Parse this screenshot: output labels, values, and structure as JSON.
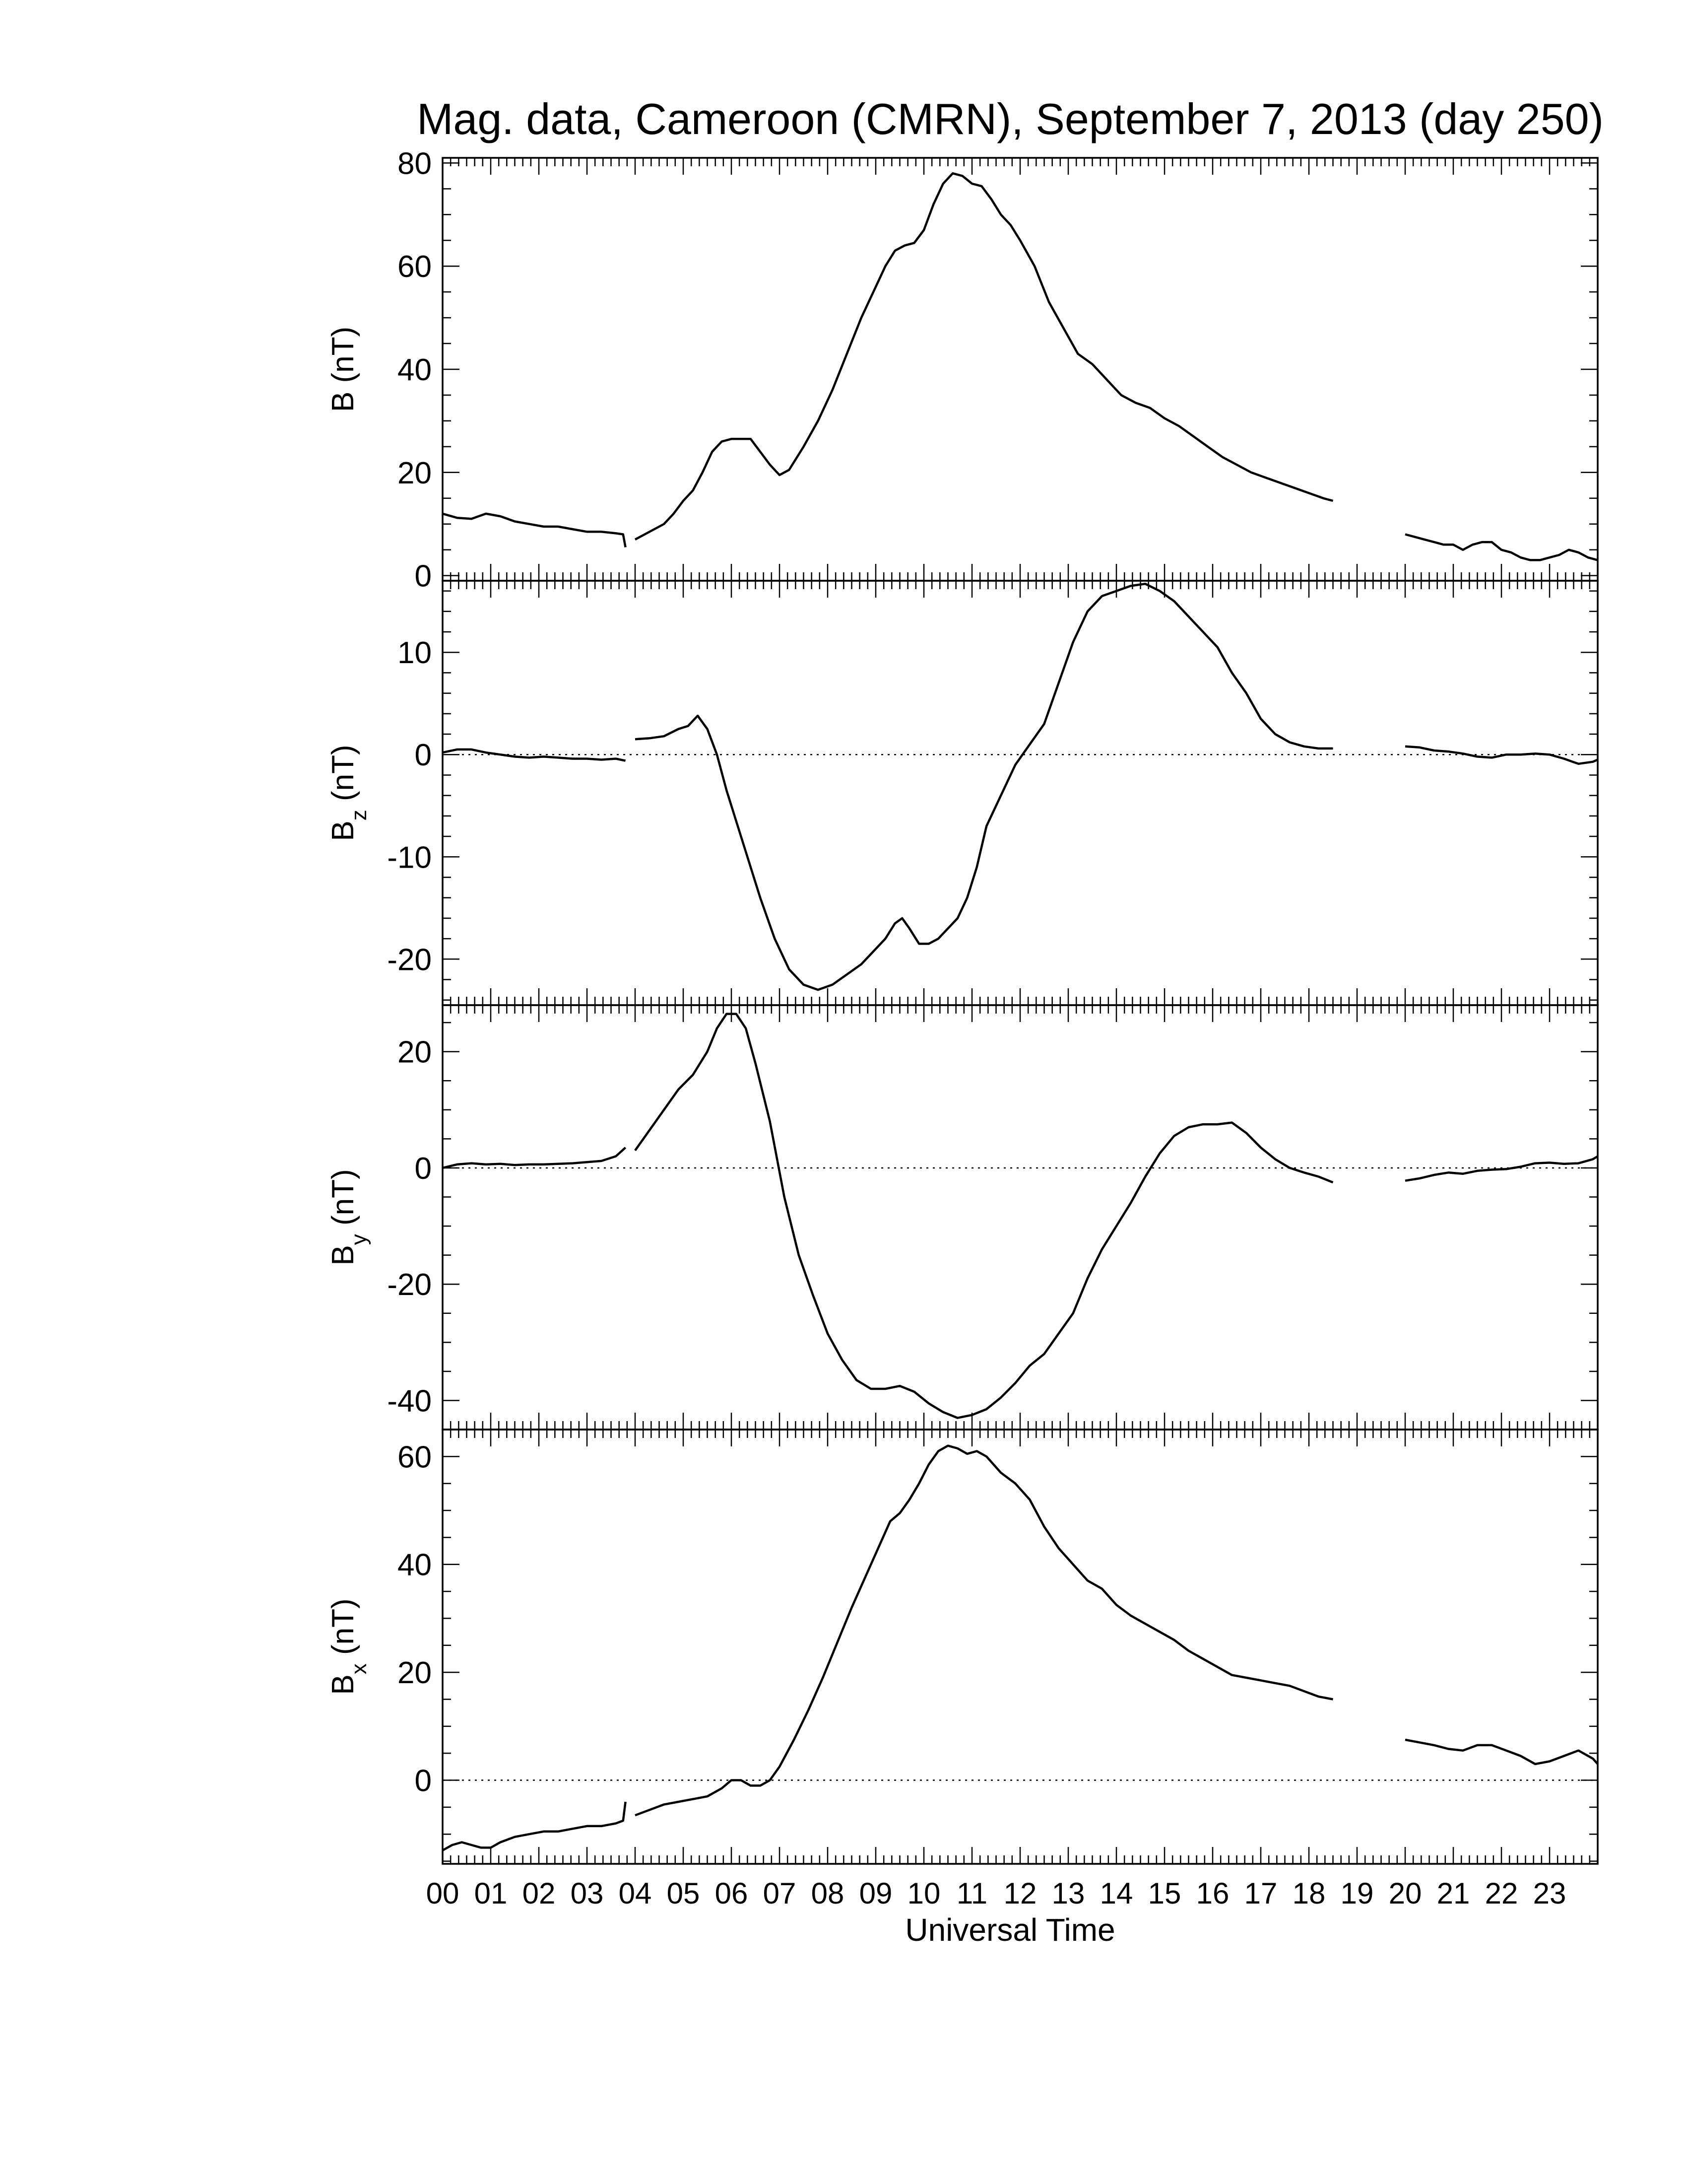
{
  "figure": {
    "title": "Mag. data, Cameroon (CMRN), September 7, 2013 (day 250)",
    "xlabel": "Universal Time"
  },
  "chart_data": [
    {
      "type": "line",
      "panel": "B",
      "ylabel": "B (nT)",
      "ylabel_sub": "",
      "ylim": [
        -1,
        81
      ],
      "yticks": [
        0,
        20,
        40,
        60,
        80
      ],
      "ytick_labels": [
        "0",
        "20",
        "40",
        "60",
        "80"
      ],
      "zero_line": false,
      "xlim": [
        0,
        24
      ],
      "x_tick_labels": [
        "00",
        "01",
        "02",
        "03",
        "04",
        "05",
        "06",
        "07",
        "08",
        "09",
        "10",
        "11",
        "12",
        "13",
        "14",
        "15",
        "16",
        "17",
        "18",
        "19",
        "20",
        "21",
        "22",
        "23"
      ],
      "segments": [
        {
          "x": [
            0,
            0.3,
            0.6,
            0.9,
            1.2,
            1.5,
            1.8,
            2.1,
            2.4,
            2.7,
            3.0,
            3.3,
            3.6,
            3.75,
            3.8
          ],
          "y": [
            12,
            11.2,
            11,
            12,
            11.5,
            10.5,
            10,
            9.5,
            9.5,
            9,
            8.5,
            8.5,
            8.2,
            8,
            5.5
          ]
        },
        {
          "x": [
            4.0,
            4.3,
            4.6,
            4.8,
            5.0,
            5.2,
            5.4,
            5.6,
            5.8,
            6.0,
            6.2,
            6.4,
            6.6,
            6.8,
            7.0,
            7.2,
            7.5,
            7.8,
            8.1,
            8.4,
            8.7,
            9.0,
            9.2,
            9.4,
            9.6,
            9.8,
            10.0,
            10.2,
            10.4,
            10.6,
            10.8,
            11.0,
            11.2,
            11.4,
            11.6,
            11.8,
            12.0,
            12.3,
            12.6,
            12.9,
            13.2,
            13.5,
            13.8,
            14.1,
            14.4,
            14.7,
            15.0,
            15.3,
            15.6,
            15.9,
            16.2,
            16.5,
            16.8,
            17.1,
            17.4,
            17.7,
            18.0,
            18.3,
            18.5
          ],
          "y": [
            7,
            8.5,
            10,
            12,
            14.5,
            16.5,
            20,
            24,
            26,
            26.5,
            26.5,
            26.5,
            24,
            21.5,
            19.5,
            20.5,
            25,
            30,
            36,
            43,
            50,
            56,
            60,
            63,
            64,
            64.5,
            67,
            72,
            76,
            78,
            77.5,
            76,
            75.5,
            73,
            70,
            68,
            65,
            60,
            53,
            48,
            43,
            41,
            38,
            35,
            33.5,
            32.5,
            30.5,
            29,
            27,
            25,
            23,
            21.5,
            20,
            19,
            18,
            17,
            16,
            15,
            14.5
          ]
        },
        {
          "x": [
            20.0,
            20.2,
            20.4,
            20.6,
            20.8,
            21.0,
            21.2,
            21.4,
            21.6,
            21.8,
            22.0,
            22.2,
            22.4,
            22.6,
            22.8,
            23.0,
            23.2,
            23.4,
            23.6,
            23.8,
            24.0
          ],
          "y": [
            8,
            7.5,
            7,
            6.5,
            6,
            6,
            5,
            6,
            6.5,
            6.5,
            5,
            4.5,
            3.5,
            3,
            3,
            3.5,
            4,
            5,
            4.5,
            3.5,
            3
          ]
        }
      ]
    },
    {
      "type": "line",
      "panel": "Bz",
      "ylabel": "B",
      "ylabel_sub": "z",
      "ylabel_unit": "(nT)",
      "ylim": [
        -24.5,
        17
      ],
      "yticks": [
        -20,
        -10,
        0,
        10
      ],
      "ytick_labels": [
        "-20",
        "-10",
        "0",
        "10"
      ],
      "zero_line": true,
      "xlim": [
        0,
        24
      ],
      "segments": [
        {
          "x": [
            0,
            0.3,
            0.6,
            0.9,
            1.2,
            1.5,
            1.8,
            2.1,
            2.4,
            2.7,
            3.0,
            3.3,
            3.6,
            3.8
          ],
          "y": [
            0.2,
            0.5,
            0.5,
            0.2,
            0,
            -0.2,
            -0.3,
            -0.2,
            -0.3,
            -0.4,
            -0.4,
            -0.5,
            -0.4,
            -0.6
          ]
        },
        {
          "x": [
            4.0,
            4.3,
            4.6,
            4.9,
            5.1,
            5.3,
            5.5,
            5.7,
            5.9,
            6.1,
            6.3,
            6.6,
            6.9,
            7.2,
            7.5,
            7.8,
            8.1,
            8.4,
            8.7,
            9.0,
            9.2,
            9.4,
            9.55,
            9.7,
            9.9,
            10.1,
            10.3,
            10.5,
            10.7,
            10.9,
            11.1,
            11.3,
            11.6,
            11.9,
            12.2,
            12.5,
            12.8,
            13.1,
            13.4,
            13.7,
            14.0,
            14.3,
            14.6,
            14.9,
            15.2,
            15.5,
            15.8,
            16.1,
            16.4,
            16.7,
            17.0,
            17.3,
            17.6,
            17.9,
            18.2,
            18.5
          ],
          "y": [
            1.5,
            1.6,
            1.8,
            2.5,
            2.8,
            3.8,
            2.5,
            0,
            -3.5,
            -6.5,
            -9.5,
            -14,
            -18,
            -21,
            -22.5,
            -23,
            -22.5,
            -21.5,
            -20.5,
            -19,
            -18,
            -16.5,
            -16,
            -17,
            -18.5,
            -18.5,
            -18,
            -17,
            -16,
            -14,
            -11,
            -7,
            -4,
            -1,
            1,
            3,
            7,
            11,
            14,
            15.5,
            16,
            16.5,
            16.7,
            16,
            15,
            13.5,
            12,
            10.5,
            8,
            6,
            3.5,
            2,
            1.2,
            0.8,
            0.6,
            0.6
          ]
        },
        {
          "x": [
            20.0,
            20.3,
            20.6,
            20.9,
            21.2,
            21.5,
            21.8,
            22.1,
            22.4,
            22.7,
            23.0,
            23.3,
            23.6,
            23.9,
            24.0
          ],
          "y": [
            0.8,
            0.7,
            0.4,
            0.3,
            0.1,
            -0.2,
            -0.3,
            0,
            0,
            0.1,
            0,
            -0.4,
            -0.9,
            -0.7,
            -0.5
          ]
        }
      ]
    },
    {
      "type": "line",
      "panel": "By",
      "ylabel": "B",
      "ylabel_sub": "y",
      "ylabel_unit": "(nT)",
      "ylim": [
        -45,
        28
      ],
      "yticks": [
        -40,
        -20,
        0,
        20
      ],
      "ytick_labels": [
        "-40",
        "-20",
        "0",
        "20"
      ],
      "zero_line": true,
      "xlim": [
        0,
        24
      ],
      "segments": [
        {
          "x": [
            0,
            0.3,
            0.6,
            0.9,
            1.2,
            1.5,
            1.8,
            2.1,
            2.4,
            2.7,
            3.0,
            3.3,
            3.6,
            3.8
          ],
          "y": [
            0,
            0.6,
            0.8,
            0.6,
            0.7,
            0.5,
            0.6,
            0.6,
            0.7,
            0.8,
            1.0,
            1.2,
            2.0,
            3.5
          ]
        },
        {
          "x": [
            4.0,
            4.3,
            4.6,
            4.9,
            5.2,
            5.5,
            5.7,
            5.9,
            6.1,
            6.3,
            6.5,
            6.8,
            7.1,
            7.4,
            7.7,
            8.0,
            8.3,
            8.6,
            8.9,
            9.2,
            9.5,
            9.8,
            10.1,
            10.4,
            10.7,
            11.0,
            11.3,
            11.6,
            11.9,
            12.2,
            12.5,
            12.8,
            13.1,
            13.4,
            13.7,
            14.0,
            14.3,
            14.6,
            14.9,
            15.2,
            15.5,
            15.8,
            16.1,
            16.4,
            16.7,
            17.0,
            17.3,
            17.6,
            17.9,
            18.2,
            18.5
          ],
          "y": [
            3,
            6.5,
            10,
            13.5,
            16,
            20,
            24,
            26.5,
            26.5,
            24,
            18,
            8,
            -5,
            -15,
            -22,
            -28.5,
            -33,
            -36.5,
            -38,
            -38,
            -37.5,
            -38.5,
            -40.5,
            -42,
            -43,
            -42.5,
            -41.5,
            -39.5,
            -37,
            -34,
            -32,
            -28.5,
            -25,
            -19,
            -14,
            -10,
            -6,
            -1.5,
            2.5,
            5.5,
            7,
            7.5,
            7.5,
            7.8,
            6,
            3.5,
            1.5,
            0,
            -0.8,
            -1.5,
            -2.5
          ]
        },
        {
          "x": [
            20.0,
            20.3,
            20.6,
            20.9,
            21.2,
            21.5,
            21.8,
            22.1,
            22.4,
            22.7,
            23.0,
            23.3,
            23.6,
            23.9,
            24.0
          ],
          "y": [
            -2.2,
            -1.8,
            -1.2,
            -0.8,
            -1,
            -0.5,
            -0.3,
            -0.2,
            0.2,
            0.8,
            0.9,
            0.7,
            0.8,
            1.5,
            2
          ]
        }
      ]
    },
    {
      "type": "line",
      "panel": "Bx",
      "ylabel": "B",
      "ylabel_sub": "x",
      "ylabel_unit": "(nT)",
      "ylim": [
        -15.5,
        65
      ],
      "yticks": [
        0,
        20,
        40,
        60
      ],
      "ytick_labels": [
        "0",
        "20",
        "40",
        "60"
      ],
      "zero_line": true,
      "xlim": [
        0,
        24
      ],
      "segments": [
        {
          "x": [
            0,
            0.2,
            0.4,
            0.6,
            0.8,
            1.0,
            1.2,
            1.5,
            1.8,
            2.1,
            2.4,
            2.7,
            3.0,
            3.3,
            3.6,
            3.75,
            3.8
          ],
          "y": [
            -13,
            -12,
            -11.5,
            -12,
            -12.5,
            -12.5,
            -11.5,
            -10.5,
            -10,
            -9.5,
            -9.5,
            -9,
            -8.5,
            -8.5,
            -8,
            -7.5,
            -4
          ]
        },
        {
          "x": [
            4.0,
            4.3,
            4.6,
            4.9,
            5.2,
            5.5,
            5.8,
            6.0,
            6.2,
            6.4,
            6.6,
            6.8,
            7.0,
            7.3,
            7.6,
            7.9,
            8.2,
            8.5,
            8.8,
            9.1,
            9.3,
            9.5,
            9.7,
            9.9,
            10.1,
            10.3,
            10.5,
            10.7,
            10.9,
            11.1,
            11.3,
            11.6,
            11.9,
            12.2,
            12.5,
            12.8,
            13.1,
            13.4,
            13.7,
            14.0,
            14.3,
            14.6,
            14.9,
            15.2,
            15.5,
            15.8,
            16.1,
            16.4,
            16.7,
            17.0,
            17.3,
            17.6,
            17.9,
            18.2,
            18.5
          ],
          "y": [
            -6.5,
            -5.5,
            -4.5,
            -4,
            -3.5,
            -3,
            -1.5,
            0,
            0,
            -1,
            -1,
            0,
            2.5,
            7.5,
            13,
            19,
            25.5,
            32,
            38,
            44,
            48,
            49.5,
            52,
            55,
            58.5,
            61,
            62,
            61.5,
            60.5,
            61,
            60,
            57,
            55,
            52,
            47,
            43,
            40,
            37,
            35.5,
            32.5,
            30.5,
            29,
            27.5,
            26,
            24,
            22.5,
            21,
            19.5,
            19,
            18.5,
            18,
            17.5,
            16.5,
            15.5,
            15
          ]
        },
        {
          "x": [
            20.0,
            20.3,
            20.6,
            20.9,
            21.2,
            21.5,
            21.8,
            22.1,
            22.4,
            22.7,
            23.0,
            23.3,
            23.6,
            23.9,
            24.0
          ],
          "y": [
            7.5,
            7,
            6.5,
            5.8,
            5.5,
            6.5,
            6.5,
            5.5,
            4.5,
            3,
            3.5,
            4.5,
            5.5,
            4,
            3
          ]
        }
      ]
    }
  ]
}
